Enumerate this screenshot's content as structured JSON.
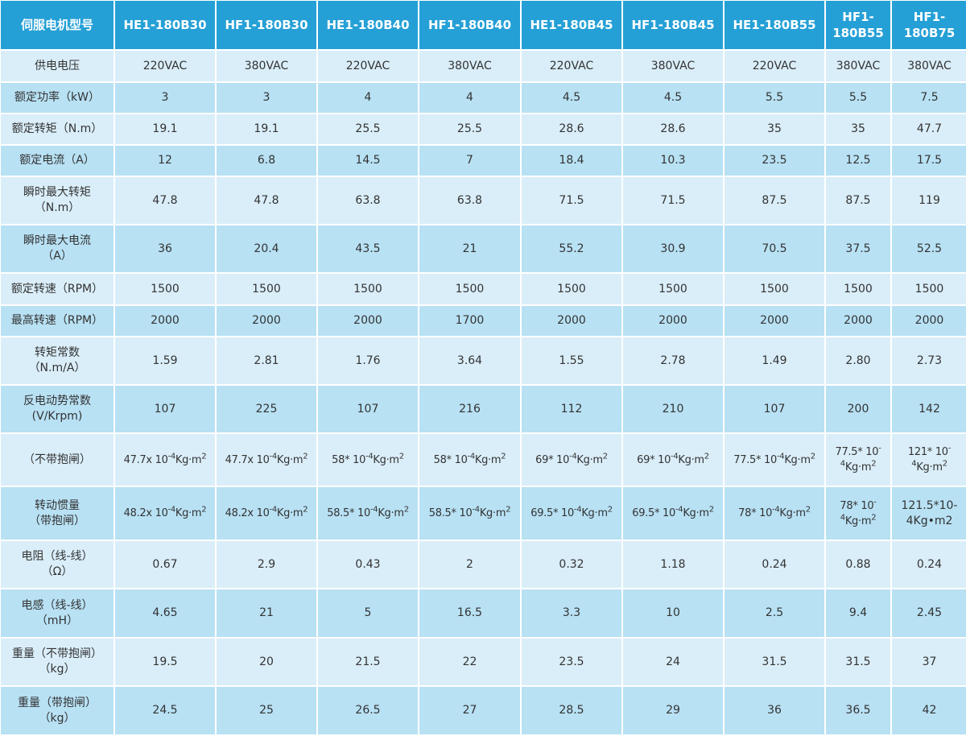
{
  "table": {
    "header": [
      "伺服电机型号",
      "HE1-180B30",
      "HF1-180B30",
      "HE1-180B40",
      "HF1-180B40",
      "HE1-180B45",
      "HF1-180B45",
      "HE1-180B55",
      [
        "HF1-",
        "180B55"
      ],
      [
        "HF1-",
        "180B75"
      ]
    ],
    "rows": [
      {
        "label": [
          "供电电压"
        ],
        "cells": [
          "220VAC",
          "380VAC",
          "220VAC",
          "380VAC",
          "220VAC",
          "380VAC",
          "220VAC",
          "380VAC",
          "380VAC"
        ]
      },
      {
        "label": [
          "额定功率（kW）"
        ],
        "cells": [
          "3",
          "3",
          "4",
          "4",
          "4.5",
          "4.5",
          "5.5",
          "5.5",
          "7.5"
        ]
      },
      {
        "label": [
          "额定转矩（N.m）"
        ],
        "cells": [
          "19.1",
          "19.1",
          "25.5",
          "25.5",
          "28.6",
          "28.6",
          "35",
          "35",
          "47.7"
        ]
      },
      {
        "label": [
          "额定电流（A）"
        ],
        "cells": [
          "12",
          "6.8",
          "14.5",
          "7",
          "18.4",
          "10.3",
          "23.5",
          "12.5",
          "17.5"
        ]
      },
      {
        "label": [
          "瞬时最大转矩",
          "（N.m）"
        ],
        "cells": [
          "47.8",
          "47.8",
          "63.8",
          "63.8",
          "71.5",
          "71.5",
          "87.5",
          "87.5",
          "119"
        ]
      },
      {
        "label": [
          "瞬时最大电流",
          "（A）"
        ],
        "cells": [
          "36",
          "20.4",
          "43.5",
          "21",
          "55.2",
          "30.9",
          "70.5",
          "37.5",
          "52.5"
        ]
      },
      {
        "label": [
          "额定转速（RPM）"
        ],
        "cells": [
          "1500",
          "1500",
          "1500",
          "1500",
          "1500",
          "1500",
          "1500",
          "1500",
          "1500"
        ]
      },
      {
        "label": [
          "最高转速（RPM）"
        ],
        "cells": [
          "2000",
          "2000",
          "2000",
          "1700",
          "2000",
          "2000",
          "2000",
          "2000",
          "2000"
        ]
      },
      {
        "label": [
          "转矩常数",
          "（N.m/A）"
        ],
        "cells": [
          "1.59",
          "2.81",
          "1.76",
          "3.64",
          "1.55",
          "2.78",
          "1.49",
          "2.80",
          "2.73"
        ]
      },
      {
        "label": [
          "反电动势常数",
          "(V/Krpm)"
        ],
        "cells": [
          "107",
          "225",
          "107",
          "216",
          "112",
          "210",
          "107",
          "200",
          "142"
        ]
      },
      {
        "label": [
          "（不带抱闸）"
        ],
        "cells": [
          [
            "47.7x 10",
            "-4",
            "Kg·m",
            "2"
          ],
          [
            "47.7x 10",
            "-4",
            "Kg·m",
            "2"
          ],
          [
            "58* 10",
            "-4",
            "Kg·m",
            "2"
          ],
          [
            "58* 10",
            "-4",
            "Kg·m",
            "2"
          ],
          [
            "69* 10",
            "-4",
            "Kg·m",
            "2"
          ],
          [
            "69* 10",
            "-4",
            "Kg·m",
            "2"
          ],
          [
            "77.5* 10",
            "-4",
            "Kg·m",
            "2"
          ],
          [
            "77.5* 10",
            "-4",
            "Kg·m",
            "2"
          ],
          [
            "121* 10",
            "-4",
            "Kg·m",
            "2"
          ]
        ]
      },
      {
        "label": [
          "转动惯量",
          "（带抱闸）"
        ],
        "cells": [
          [
            "48.2x 10",
            "-4",
            "Kg·m",
            "2"
          ],
          [
            "48.2x 10",
            "-4",
            "Kg·m",
            "2"
          ],
          [
            "58.5* 10",
            "-4",
            "Kg·m",
            "2"
          ],
          [
            "58.5* 10",
            "-4",
            "Kg·m",
            "2"
          ],
          [
            "69.5* 10",
            "-4",
            "Kg·m",
            "2"
          ],
          [
            "69.5* 10",
            "-4",
            "Kg·m",
            "2"
          ],
          [
            "78* 10",
            "-4",
            "Kg·m",
            "2"
          ],
          [
            "78* 10",
            "-4",
            "Kg·m",
            "2"
          ],
          "121.5*10-4Kg•m2"
        ]
      },
      {
        "label": [
          "电阻（线-线）",
          "（Ω）"
        ],
        "cells": [
          "0.67",
          "2.9",
          "0.43",
          "2",
          "0.32",
          "1.18",
          "0.24",
          "0.88",
          "0.24"
        ]
      },
      {
        "label": [
          "电感（线-线）",
          "（mH）"
        ],
        "cells": [
          "4.65",
          "21",
          "5",
          "16.5",
          "3.3",
          "10",
          "2.5",
          "9.4",
          "2.45"
        ]
      },
      {
        "label": [
          "重量（不带抱闸）",
          "（kg）"
        ],
        "cells": [
          "19.5",
          "20",
          "21.5",
          "22",
          "23.5",
          "24",
          "31.5",
          "31.5",
          "37"
        ]
      },
      {
        "label": [
          "重量（带抱闸）",
          "（kg）"
        ],
        "cells": [
          "24.5",
          "25",
          "26.5",
          "27",
          "28.5",
          "29",
          "36",
          "36.5",
          "42"
        ]
      }
    ]
  }
}
